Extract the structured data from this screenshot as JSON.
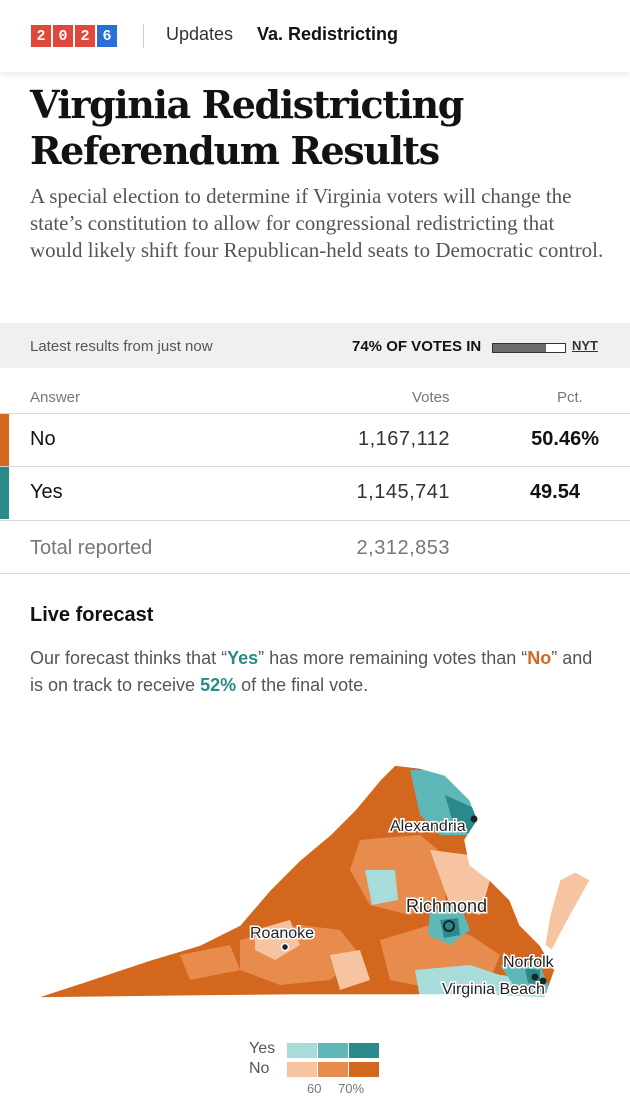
{
  "header": {
    "year_digits": [
      "2",
      "0",
      "2",
      "6"
    ],
    "nav_updates": "Updates",
    "nav_current": "Va. Redistricting"
  },
  "title": "Virginia Redistricting Referendum Results",
  "deck": "A special election to determine if Virginia voters will change the state’s constitution to allow for congressional redistricting that would likely shift four Republican-held seats to Democratic control.",
  "status": {
    "latest": "Latest results from just now",
    "votes_in": "74% OF VOTES IN",
    "votes_in_fraction": 0.74,
    "source": "NYT"
  },
  "table": {
    "headers": {
      "answer": "Answer",
      "votes": "Votes",
      "pct": "Pct."
    },
    "rows": [
      {
        "answer": "No",
        "votes": "1,167,112",
        "pct": "50.46%",
        "color": "#d4671e"
      },
      {
        "answer": "Yes",
        "votes": "1,145,741",
        "pct": "49.54",
        "color": "#2a8a89"
      }
    ],
    "total_label": "Total reported",
    "total_votes": "2,312,853"
  },
  "forecast": {
    "heading": "Live forecast",
    "text_1": "Our forecast thinks that “",
    "yes_word": "Yes",
    "text_2": "” has more remaining votes than “",
    "no_word": "No",
    "text_3": "” and is on track to receive ",
    "pct": "52%",
    "text_4": " of the final vote."
  },
  "map": {
    "cities": [
      "Alexandria",
      "Richmond",
      "Roanoke",
      "Norfolk",
      "Virginia Beach"
    ]
  },
  "legend": {
    "yes_label": "Yes",
    "no_label": "No",
    "yes_colors": [
      "#a7dcdb",
      "#5fb7b7",
      "#2a8a89"
    ],
    "no_colors": [
      "#f6c4a0",
      "#e88c4e",
      "#d4671e"
    ],
    "ticks": [
      "60",
      "70%"
    ]
  }
}
